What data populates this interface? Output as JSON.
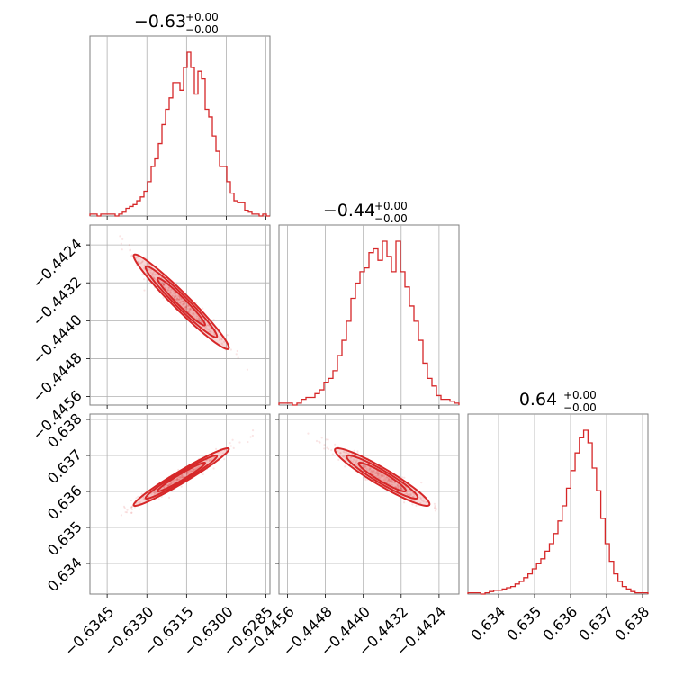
{
  "chart_data": {
    "type": "corner",
    "color": "#d62728",
    "params": [
      {
        "title_value": "−0.63",
        "title_plus": "+0.00",
        "title_minus": "−0.00",
        "range": [
          -0.63515,
          -0.62835
        ],
        "ticks": [
          -0.6345,
          -0.633,
          -0.6315,
          -0.63,
          -0.6285
        ],
        "tick_labels": [
          "−0.6345",
          "−0.6330",
          "−0.6315",
          "−0.6300",
          "−0.6285"
        ],
        "median": -0.6317,
        "sd": 0.0009,
        "hist": [
          1,
          1,
          0,
          1,
          1,
          1,
          1,
          0,
          1,
          2,
          4,
          5,
          6,
          8,
          10,
          13,
          18,
          26,
          30,
          38,
          48,
          56,
          62,
          70,
          70,
          66,
          78,
          86,
          78,
          64,
          76,
          72,
          56,
          52,
          42,
          34,
          26,
          26,
          18,
          12,
          8,
          7,
          7,
          3,
          2,
          1,
          1,
          0,
          1,
          0
        ],
        "hist_labels": [
          {
            "value": "−0.63",
            "plus": "+0.00",
            "minus": "−0.00"
          }
        ]
      },
      {
        "title_value": "−0.44",
        "title_plus": "+0.00",
        "title_minus": "−0.00",
        "range": [
          -0.44578,
          -0.44198
        ],
        "ticks": [
          -0.4456,
          -0.4448,
          -0.444,
          -0.4432,
          -0.4424
        ],
        "tick_labels": [
          "−0.4456",
          "−0.4448",
          "−0.4440",
          "−0.4432",
          "−0.4424"
        ],
        "median": -0.4436,
        "sd": 0.0005,
        "hist": [
          1,
          1,
          1,
          0,
          1,
          3,
          4,
          4,
          6,
          8,
          12,
          14,
          18,
          26,
          34,
          44,
          56,
          64,
          70,
          72,
          80,
          82,
          76,
          86,
          78,
          70,
          86,
          70,
          62,
          52,
          44,
          34,
          22,
          14,
          10,
          5,
          3,
          3,
          2,
          1
        ]
      },
      {
        "title_value": "0.64",
        "title_plus": "+0.00",
        "title_minus": "−0.00",
        "range": [
          0.63315,
          0.63815
        ],
        "ticks": [
          0.634,
          0.635,
          0.636,
          0.637,
          0.638
        ],
        "tick_labels": [
          "0.634",
          "0.635",
          "0.636",
          "0.637",
          "0.638"
        ],
        "median": 0.6364,
        "sd": 0.0004,
        "hist": [
          1,
          1,
          1,
          0,
          1,
          2,
          3,
          3,
          4,
          5,
          6,
          8,
          10,
          13,
          16,
          20,
          24,
          28,
          34,
          40,
          48,
          58,
          70,
          84,
          98,
          112,
          124,
          130,
          120,
          100,
          82,
          60,
          40,
          26,
          16,
          10,
          6,
          4,
          2,
          1,
          1,
          1
        ]
      }
    ],
    "pairs": [
      {
        "row": 1,
        "col": 0,
        "corr": -0.97
      },
      {
        "row": 2,
        "col": 0,
        "corr": 0.97
      },
      {
        "row": 2,
        "col": 1,
        "corr": -0.94
      }
    ]
  }
}
